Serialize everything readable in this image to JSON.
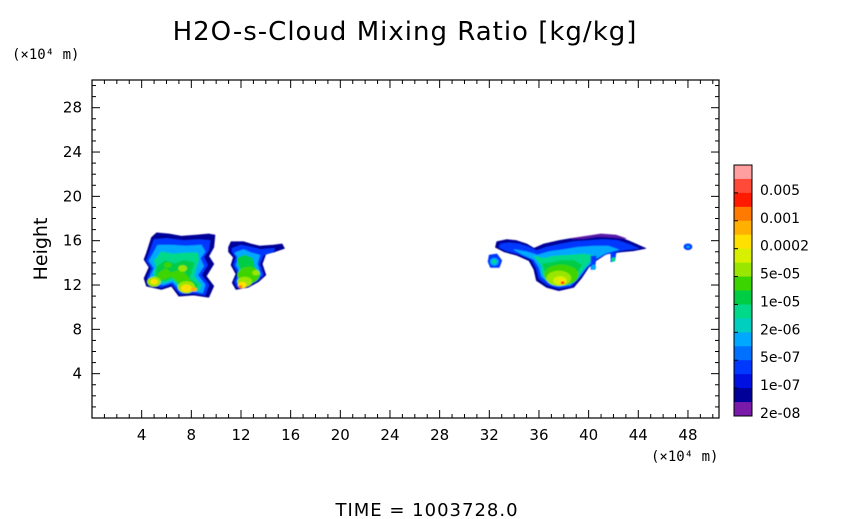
{
  "chart_data": {
    "type": "heatmap",
    "title": "H2O-s-Cloud Mixing Ratio [kg/kg]",
    "xlabel": "",
    "ylabel": "Height",
    "x_unit": "(×10⁴ m)",
    "y_unit": "(×10⁴ m)",
    "xlim": [
      0,
      50.5
    ],
    "ylim": [
      0,
      30.5
    ],
    "x_ticks": [
      4,
      8,
      12,
      16,
      20,
      24,
      28,
      32,
      36,
      40,
      44,
      48
    ],
    "y_ticks": [
      4,
      8,
      12,
      16,
      20,
      24,
      28
    ],
    "time_label": "TIME = 1003728.0",
    "colorbar": {
      "labels": [
        "0.005",
        "0.001",
        "0.0002",
        "5e-05",
        "1e-05",
        "2e-06",
        "5e-07",
        "1e-07",
        "2e-08"
      ],
      "colors": [
        "#ff9f9f",
        "#ff4a3a",
        "#ff1a00",
        "#ff7a00",
        "#ffb000",
        "#ffe000",
        "#d8f000",
        "#9ae600",
        "#3cd400",
        "#00cc44",
        "#00d88a",
        "#00cfc0",
        "#00a8ff",
        "#0070ff",
        "#0038ff",
        "#0010e0",
        "#000098",
        "#7a1aa8"
      ]
    },
    "cloud_cells": [
      {
        "name": "cloud-cell-west",
        "x_range": [
          4,
          10
        ],
        "top": 16.8,
        "base": 11
      },
      {
        "name": "cloud-cell-center-west",
        "x_range": [
          11,
          15.5
        ],
        "top": 15.9,
        "base": 11.5
      },
      {
        "name": "cloud-cell-east",
        "x_range": [
          32,
          44.5
        ],
        "top": 16.6,
        "base": 11.5
      },
      {
        "name": "cloud-fragment-far-east",
        "x_range": [
          47.6,
          48.3
        ],
        "top": 15.8,
        "base": 15.1
      }
    ]
  }
}
